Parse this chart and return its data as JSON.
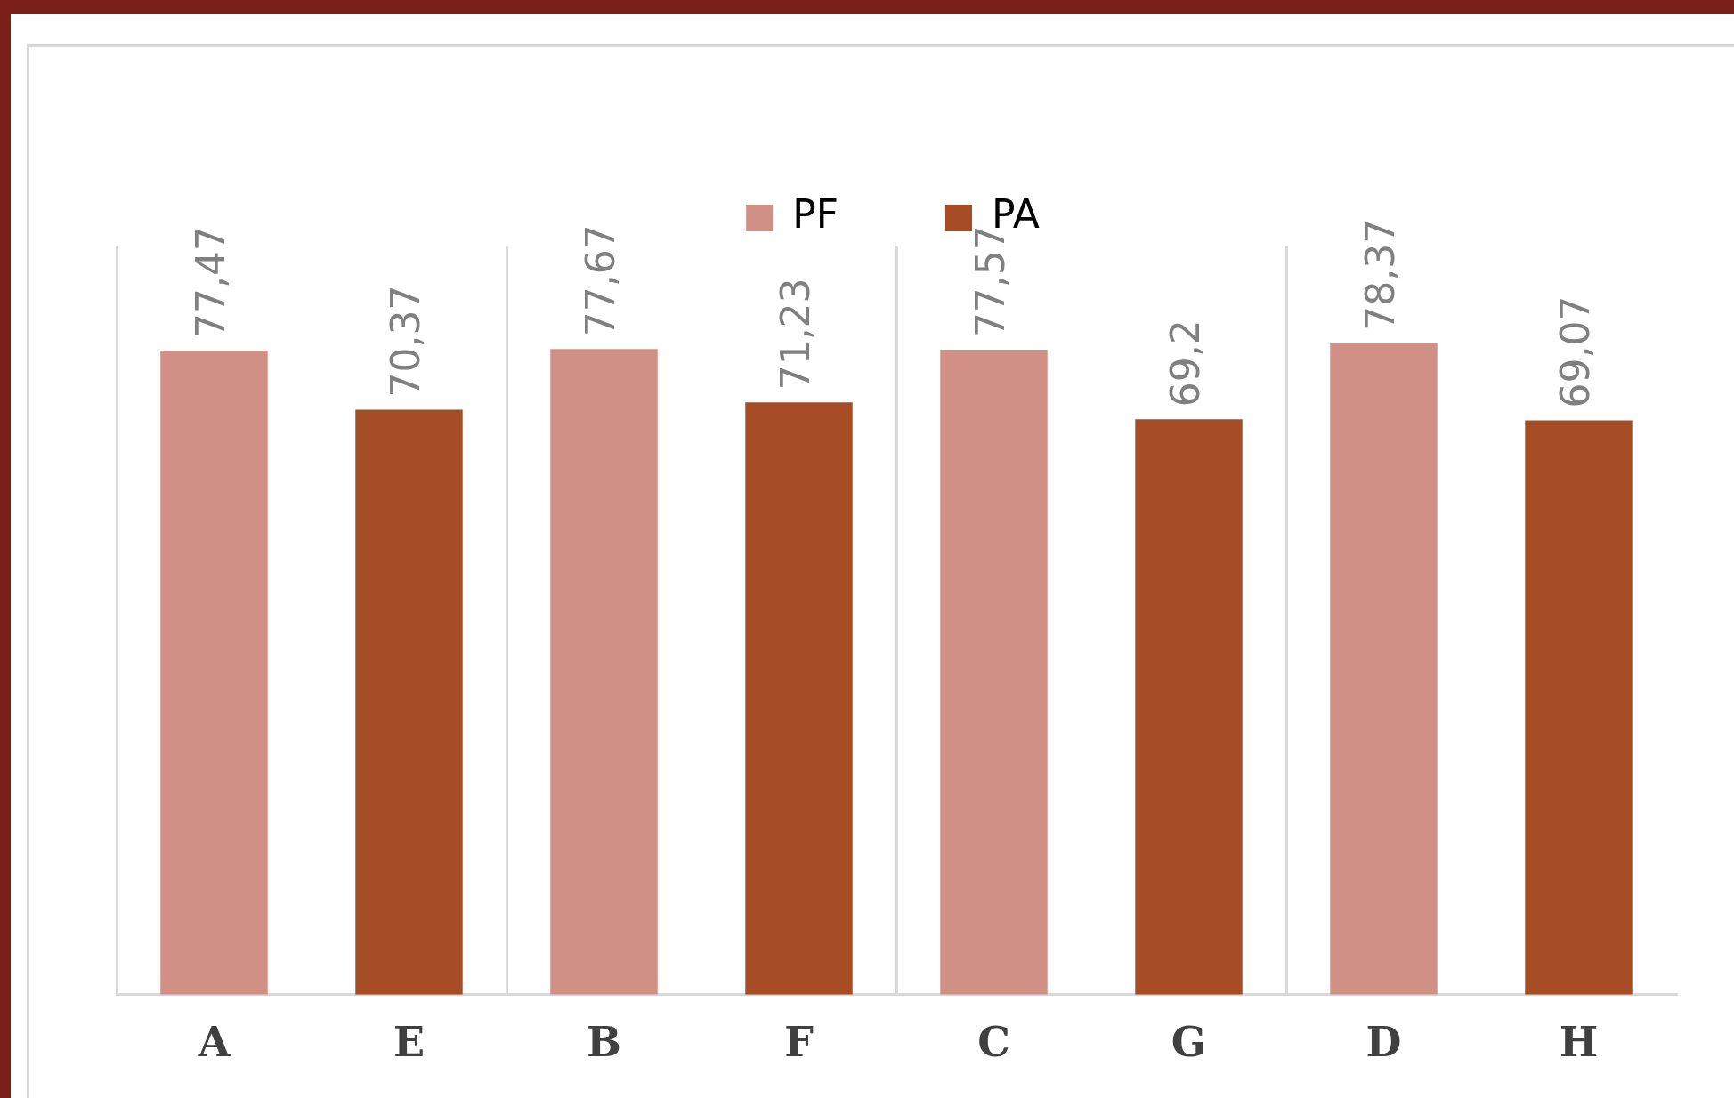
{
  "chart_data": {
    "type": "bar",
    "categories": [
      "A",
      "E",
      "B",
      "F",
      "C",
      "G",
      "D",
      "H"
    ],
    "series": [
      {
        "name": "PF",
        "color": "#d09085",
        "values": [
          77.47,
          null,
          77.67,
          null,
          77.57,
          null,
          78.37,
          null
        ],
        "value_labels": [
          "77,47",
          null,
          "77,67",
          null,
          "77,57",
          null,
          "78,37",
          null
        ]
      },
      {
        "name": "PA",
        "color": "#a64d25",
        "values": [
          null,
          70.37,
          null,
          71.23,
          null,
          69.2,
          null,
          69.07
        ],
        "value_labels": [
          null,
          "70,37",
          null,
          "71,23",
          null,
          "69,2",
          null,
          "69,07"
        ]
      }
    ],
    "tick_labels": "x",
    "grid": "x",
    "legend": "top"
  }
}
